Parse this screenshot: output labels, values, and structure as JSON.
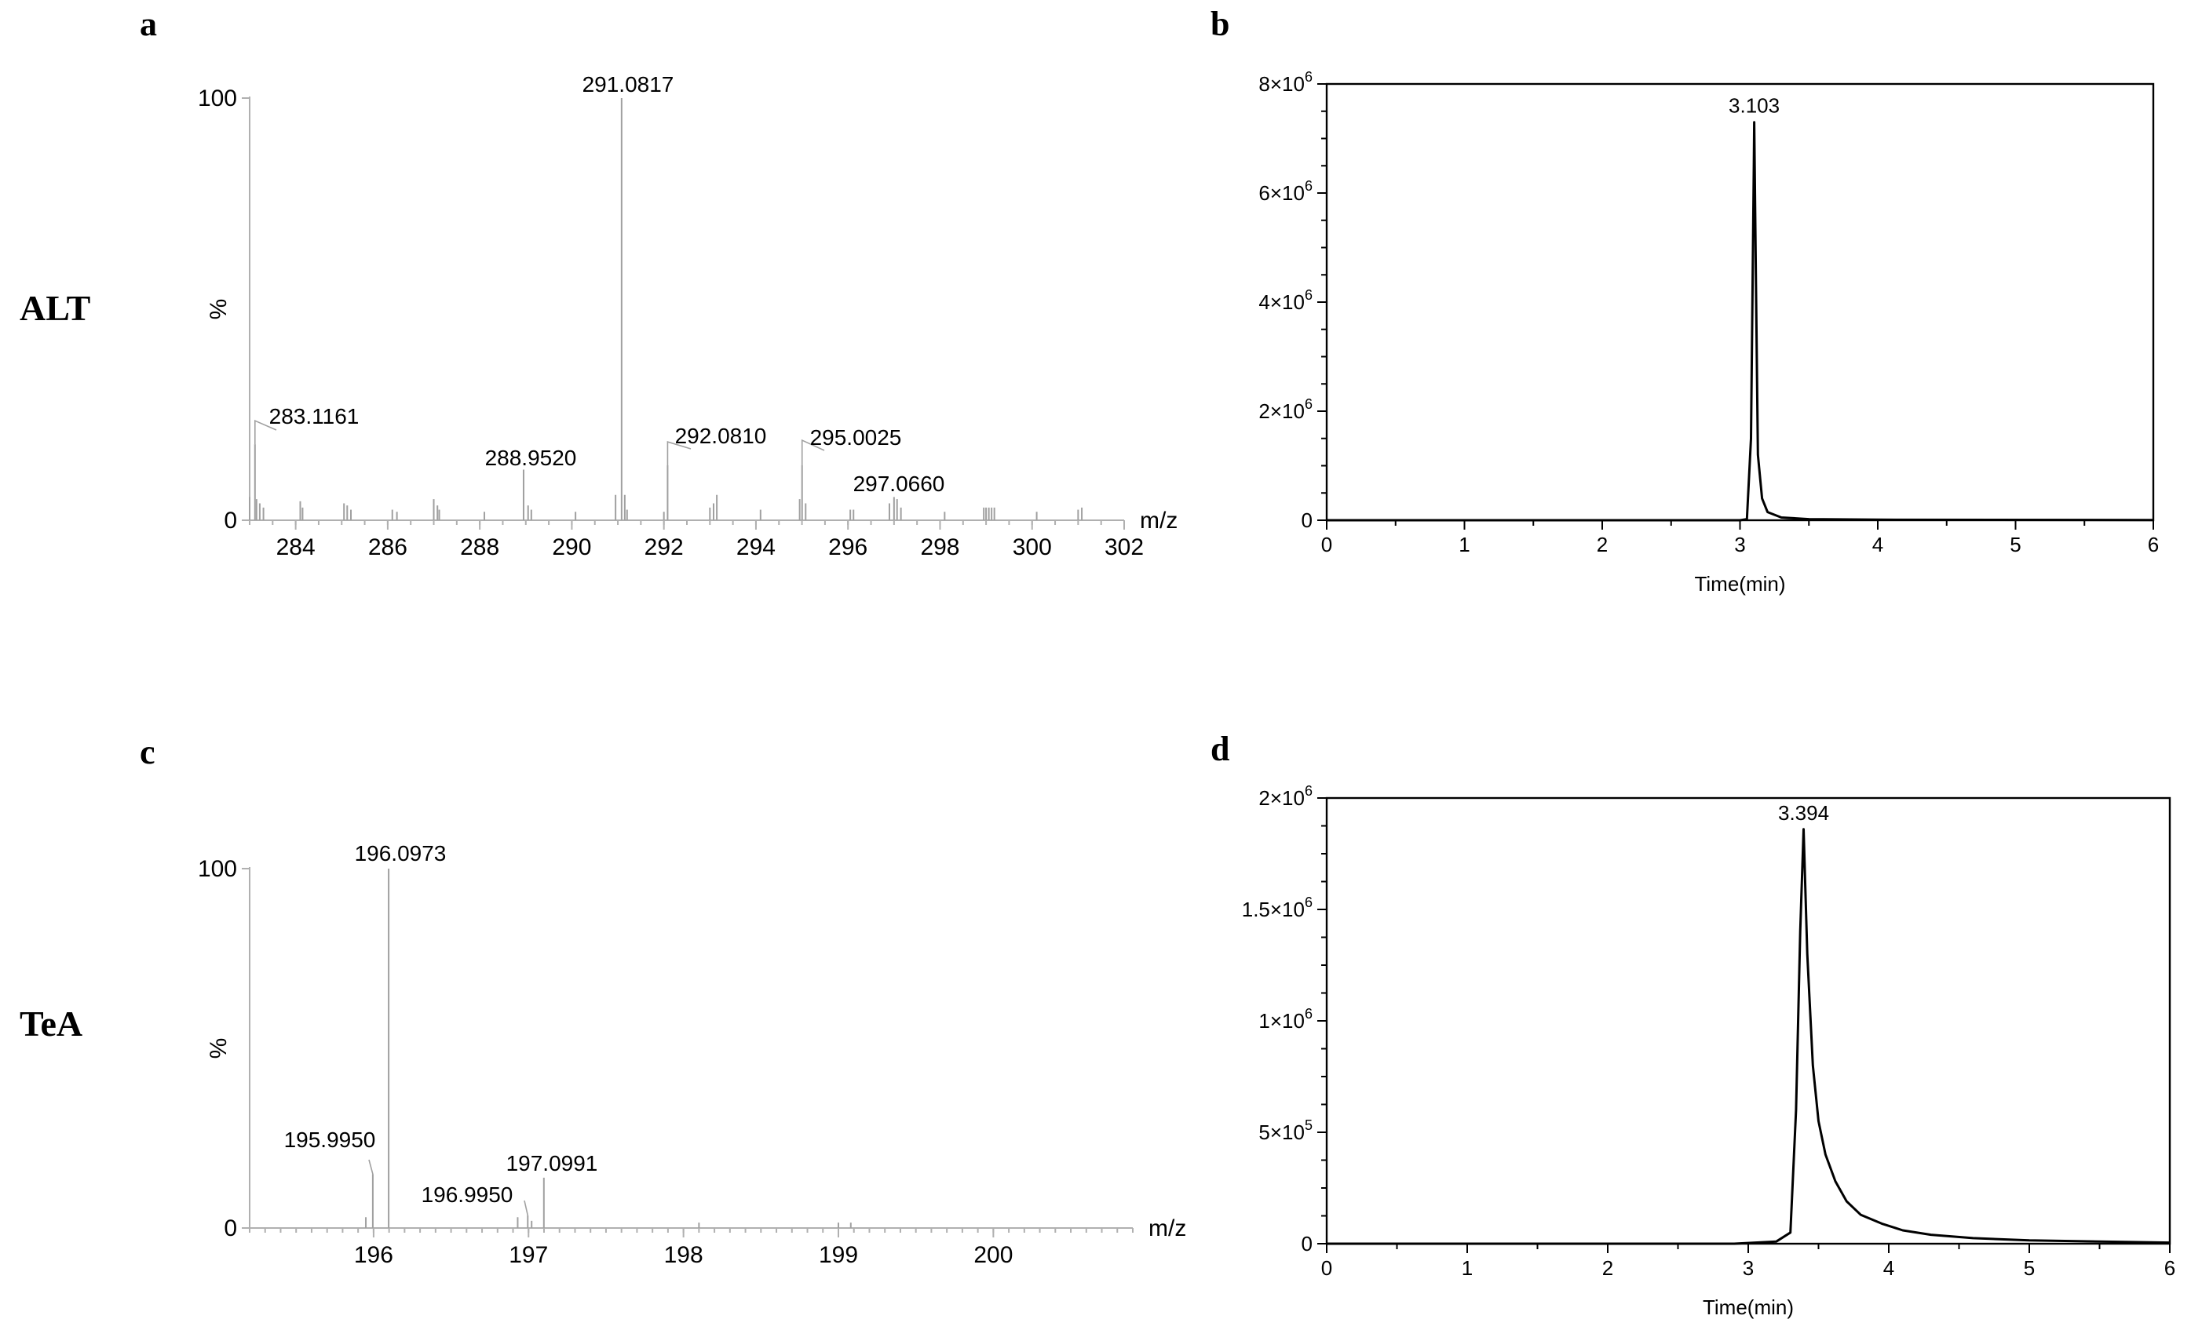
{
  "rows": [
    {
      "label": "ALT"
    },
    {
      "label": "TeA"
    }
  ],
  "chart_data": [
    {
      "panel": "a",
      "type": "bar",
      "subtype": "mass-spectrum",
      "xlabel": "m/z",
      "ylabel": "%",
      "xlim": [
        283.0,
        302.0
      ],
      "ylim": [
        0,
        100
      ],
      "xticks": [
        284,
        286,
        288,
        290,
        292,
        294,
        296,
        298,
        300,
        302
      ],
      "yticks": [
        0,
        100
      ],
      "grid": false,
      "labeled_peaks": [
        {
          "mz": 283.1161,
          "label": "283.1161",
          "intensity": 18
        },
        {
          "mz": 288.952,
          "label": "288.9520",
          "intensity": 12
        },
        {
          "mz": 291.0817,
          "label": "291.0817",
          "intensity": 100
        },
        {
          "mz": 292.081,
          "label": "292.0810",
          "intensity": 13
        },
        {
          "mz": 295.0025,
          "label": "295.0025",
          "intensity": 13
        },
        {
          "mz": 297.066,
          "label": "297.0660",
          "intensity": 5
        }
      ],
      "peaks": [
        [
          283.0,
          5.5
        ],
        [
          283.1161,
          18
        ],
        [
          283.15,
          5
        ],
        [
          283.22,
          4
        ],
        [
          283.3,
          3
        ],
        [
          284.1,
          4.5
        ],
        [
          284.15,
          3
        ],
        [
          285.05,
          4
        ],
        [
          285.12,
          3.5
        ],
        [
          285.2,
          2.5
        ],
        [
          286.1,
          2.5
        ],
        [
          286.2,
          2
        ],
        [
          287.0,
          5
        ],
        [
          287.08,
          3.5
        ],
        [
          287.12,
          2.5
        ],
        [
          288.1,
          2
        ],
        [
          288.952,
          12
        ],
        [
          289.05,
          3.5
        ],
        [
          289.12,
          2.5
        ],
        [
          290.08,
          2
        ],
        [
          290.95,
          6
        ],
        [
          291.0817,
          100
        ],
        [
          291.15,
          6
        ],
        [
          291.2,
          2.5
        ],
        [
          292.0,
          2
        ],
        [
          292.081,
          13
        ],
        [
          293.0,
          3
        ],
        [
          293.08,
          4
        ],
        [
          293.15,
          6
        ],
        [
          294.1,
          2.5
        ],
        [
          294.95,
          5
        ],
        [
          295.0025,
          13
        ],
        [
          295.08,
          4
        ],
        [
          296.05,
          2.5
        ],
        [
          296.12,
          2.5
        ],
        [
          296.9,
          4
        ],
        [
          297.0,
          5.5
        ],
        [
          297.066,
          5
        ],
        [
          297.15,
          3
        ],
        [
          298.1,
          2
        ],
        [
          298.95,
          3
        ],
        [
          299.0,
          3
        ],
        [
          299.06,
          3
        ],
        [
          299.12,
          3
        ],
        [
          299.18,
          3
        ],
        [
          300.1,
          2
        ],
        [
          301.0,
          2.5
        ],
        [
          301.08,
          3
        ]
      ]
    },
    {
      "panel": "b",
      "type": "line",
      "subtype": "chromatogram",
      "xlabel": "Time(min)",
      "ylabel": "",
      "xlim": [
        0,
        6
      ],
      "ylim": [
        0,
        8000000
      ],
      "xticks": [
        0,
        1,
        2,
        3,
        4,
        5,
        6
      ],
      "yticks": [
        0,
        2000000,
        4000000,
        6000000,
        8000000
      ],
      "ytick_labels": [
        {
          "mantissa": "0",
          "exp": ""
        },
        {
          "mantissa": "2×10",
          "exp": "6"
        },
        {
          "mantissa": "4×10",
          "exp": "6"
        },
        {
          "mantissa": "6×10",
          "exp": "6"
        },
        {
          "mantissa": "8×10",
          "exp": "6"
        }
      ],
      "grid": false,
      "peak_annotation": {
        "x": 3.103,
        "label": "3.103",
        "y": 7300000
      },
      "x": [
        0,
        3.0,
        3.05,
        3.08,
        3.1,
        3.103,
        3.115,
        3.13,
        3.16,
        3.2,
        3.3,
        3.5,
        4.0,
        6.0
      ],
      "y": [
        0,
        0,
        20000,
        1500000,
        6500000,
        7300000,
        4500000,
        1200000,
        400000,
        150000,
        50000,
        20000,
        10000,
        5000
      ]
    },
    {
      "panel": "c",
      "type": "bar",
      "subtype": "mass-spectrum",
      "xlabel": "m/z",
      "ylabel": "%",
      "xlim": [
        195.2,
        200.9
      ],
      "ylim": [
        0,
        100
      ],
      "xticks": [
        196,
        197,
        198,
        199,
        200
      ],
      "yticks": [
        0,
        100
      ],
      "grid": false,
      "labeled_peaks": [
        {
          "mz": 195.995,
          "label": "195.9950",
          "intensity": 15
        },
        {
          "mz": 196.0973,
          "label": "196.0973",
          "intensity": 100
        },
        {
          "mz": 196.995,
          "label": "196.9950",
          "intensity": 3.5
        },
        {
          "mz": 197.0991,
          "label": "197.0991",
          "intensity": 14
        }
      ],
      "peaks": [
        [
          195.95,
          3
        ],
        [
          195.995,
          15
        ],
        [
          196.0973,
          100
        ],
        [
          196.93,
          3
        ],
        [
          196.995,
          3.5
        ],
        [
          197.02,
          2
        ],
        [
          197.0991,
          14
        ],
        [
          198.1,
          1.5
        ],
        [
          199.0,
          1.5
        ],
        [
          199.08,
          1.5
        ]
      ]
    },
    {
      "panel": "d",
      "type": "line",
      "subtype": "chromatogram",
      "xlabel": "Time(min)",
      "ylabel": "",
      "xlim": [
        0,
        6
      ],
      "ylim": [
        0,
        2000000
      ],
      "xticks": [
        0,
        1,
        2,
        3,
        4,
        5,
        6
      ],
      "yticks": [
        0,
        500000,
        1000000,
        1500000,
        2000000
      ],
      "ytick_labels": [
        {
          "mantissa": "0",
          "exp": ""
        },
        {
          "mantissa": "5×10",
          "exp": "5"
        },
        {
          "mantissa": "1×10",
          "exp": "6"
        },
        {
          "mantissa": "1.5×10",
          "exp": "6"
        },
        {
          "mantissa": "2×10",
          "exp": "6"
        }
      ],
      "grid": false,
      "peak_annotation": {
        "x": 3.394,
        "label": "3.394",
        "y": 1860000
      },
      "x": [
        0,
        2.9,
        3.2,
        3.3,
        3.34,
        3.37,
        3.394,
        3.42,
        3.46,
        3.5,
        3.55,
        3.62,
        3.7,
        3.8,
        3.95,
        4.1,
        4.3,
        4.6,
        5.0,
        5.5,
        6.0
      ],
      "y": [
        0,
        0,
        10000,
        50000,
        600000,
        1400000,
        1860000,
        1300000,
        800000,
        550000,
        400000,
        280000,
        190000,
        130000,
        90000,
        60000,
        40000,
        25000,
        15000,
        10000,
        5000
      ]
    }
  ]
}
